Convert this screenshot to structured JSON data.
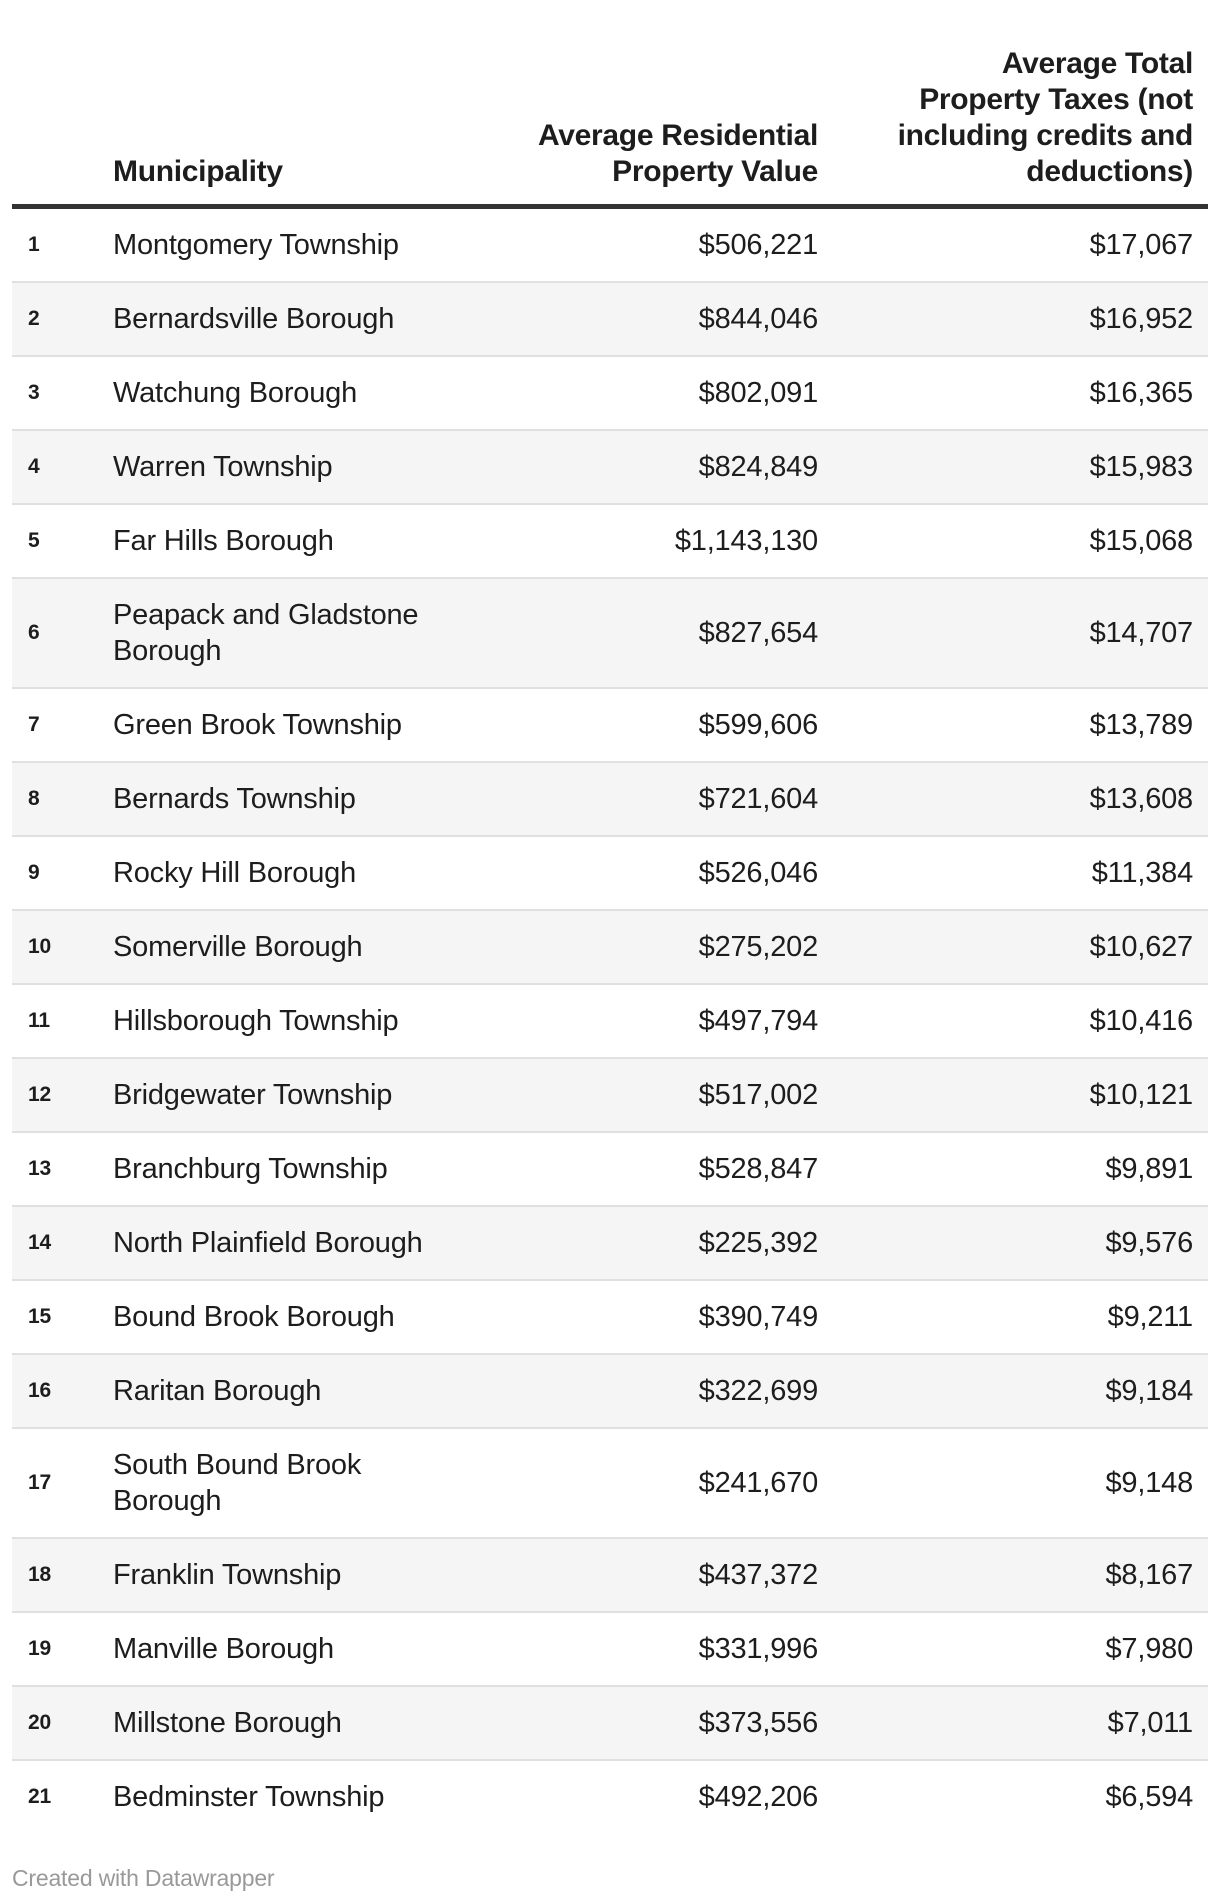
{
  "table": {
    "columns": {
      "rank": "",
      "municipality": "Municipality",
      "value": "Average Residential\nProperty Value",
      "taxes": "Average Total\nProperty Taxes (not\nincluding credits and\ndeductions)"
    },
    "rows": [
      {
        "rank": "1",
        "municipality": "Montgomery Township",
        "value": "$506,221",
        "taxes": "$17,067"
      },
      {
        "rank": "2",
        "municipality": "Bernardsville Borough",
        "value": "$844,046",
        "taxes": "$16,952"
      },
      {
        "rank": "3",
        "municipality": "Watchung Borough",
        "value": "$802,091",
        "taxes": "$16,365"
      },
      {
        "rank": "4",
        "municipality": "Warren Township",
        "value": "$824,849",
        "taxes": "$15,983"
      },
      {
        "rank": "5",
        "municipality": "Far Hills Borough",
        "value": "$1,143,130",
        "taxes": "$15,068"
      },
      {
        "rank": "6",
        "municipality": "Peapack and Gladstone\nBorough",
        "value": "$827,654",
        "taxes": "$14,707"
      },
      {
        "rank": "7",
        "municipality": "Green Brook Township",
        "value": "$599,606",
        "taxes": "$13,789"
      },
      {
        "rank": "8",
        "municipality": "Bernards Township",
        "value": "$721,604",
        "taxes": "$13,608"
      },
      {
        "rank": "9",
        "municipality": "Rocky Hill Borough",
        "value": "$526,046",
        "taxes": "$11,384"
      },
      {
        "rank": "10",
        "municipality": "Somerville Borough",
        "value": "$275,202",
        "taxes": "$10,627"
      },
      {
        "rank": "11",
        "municipality": "Hillsborough Township",
        "value": "$497,794",
        "taxes": "$10,416"
      },
      {
        "rank": "12",
        "municipality": "Bridgewater Township",
        "value": "$517,002",
        "taxes": "$10,121"
      },
      {
        "rank": "13",
        "municipality": "Branchburg Township",
        "value": "$528,847",
        "taxes": "$9,891"
      },
      {
        "rank": "14",
        "municipality": "North Plainfield Borough",
        "value": "$225,392",
        "taxes": "$9,576"
      },
      {
        "rank": "15",
        "municipality": "Bound Brook Borough",
        "value": "$390,749",
        "taxes": "$9,211"
      },
      {
        "rank": "16",
        "municipality": "Raritan Borough",
        "value": "$322,699",
        "taxes": "$9,184"
      },
      {
        "rank": "17",
        "municipality": "South Bound Brook\nBorough",
        "value": "$241,670",
        "taxes": "$9,148"
      },
      {
        "rank": "18",
        "municipality": "Franklin Township",
        "value": "$437,372",
        "taxes": "$8,167"
      },
      {
        "rank": "19",
        "municipality": "Manville Borough",
        "value": "$331,996",
        "taxes": "$7,980"
      },
      {
        "rank": "20",
        "municipality": "Millstone Borough",
        "value": "$373,556",
        "taxes": "$7,011"
      },
      {
        "rank": "21",
        "municipality": "Bedminster Township",
        "value": "$492,206",
        "taxes": "$6,594"
      }
    ]
  },
  "footer": {
    "credit": "Created with Datawrapper"
  },
  "colors": {
    "text": "#1d1d1d",
    "header_border": "#333333",
    "row_border": "#e0e0e0",
    "stripe": "#f5f5f5",
    "credit": "#999999"
  },
  "chart_data": {
    "type": "table",
    "columns": [
      "Rank",
      "Municipality",
      "Average Residential Property Value",
      "Average Total Property Taxes (not including credits and deductions)"
    ],
    "rows": [
      [
        1,
        "Montgomery Township",
        506221,
        17067
      ],
      [
        2,
        "Bernardsville Borough",
        844046,
        16952
      ],
      [
        3,
        "Watchung Borough",
        802091,
        16365
      ],
      [
        4,
        "Warren Township",
        824849,
        15983
      ],
      [
        5,
        "Far Hills Borough",
        1143130,
        15068
      ],
      [
        6,
        "Peapack and Gladstone Borough",
        827654,
        14707
      ],
      [
        7,
        "Green Brook Township",
        599606,
        13789
      ],
      [
        8,
        "Bernards Township",
        721604,
        13608
      ],
      [
        9,
        "Rocky Hill Borough",
        526046,
        11384
      ],
      [
        10,
        "Somerville Borough",
        275202,
        10627
      ],
      [
        11,
        "Hillsborough Township",
        497794,
        10416
      ],
      [
        12,
        "Bridgewater Township",
        517002,
        10121
      ],
      [
        13,
        "Branchburg Township",
        528847,
        9891
      ],
      [
        14,
        "North Plainfield Borough",
        225392,
        9576
      ],
      [
        15,
        "Bound Brook Borough",
        390749,
        9211
      ],
      [
        16,
        "Raritan Borough",
        322699,
        9184
      ],
      [
        17,
        "South Bound Brook Borough",
        241670,
        9148
      ],
      [
        18,
        "Franklin Township",
        437372,
        8167
      ],
      [
        19,
        "Manville Borough",
        331996,
        7980
      ],
      [
        20,
        "Millstone Borough",
        373556,
        7011
      ],
      [
        21,
        "Bedminster Township",
        492206,
        6594
      ]
    ],
    "layout_hints": {
      "striped_rows": "even",
      "value_alignment": "right",
      "header_alignment": "bottom"
    }
  }
}
